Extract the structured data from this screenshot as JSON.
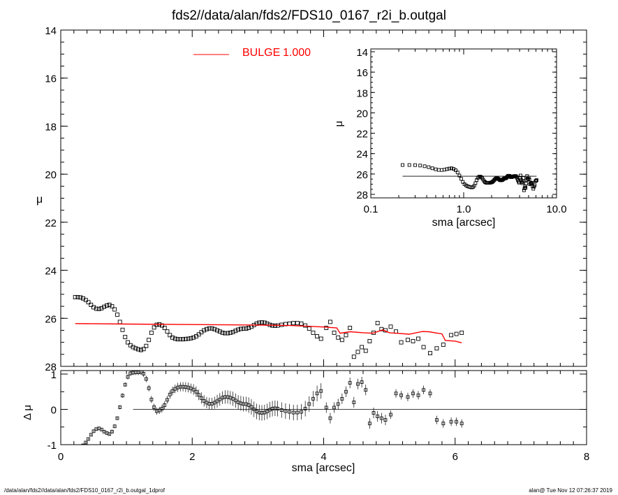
{
  "title": "fds2//data/alan/fds2/FDS10_0167_r2i_b.outgal",
  "footer_left": "/data/alan/fds2//data/alan/fds2/FDS10_0167_r2i_b.outgal_1dprof",
  "footer_right": "alan@  Tue Nov 12 07:26:37 2019",
  "colors": {
    "model": "#ff0000",
    "data": "#000000",
    "axis": "#000000",
    "grid": "#000000"
  },
  "chart_data": [
    {
      "id": "main",
      "type": "scatter",
      "xlabel": "",
      "ylabel": "μ",
      "xlim": [
        0,
        8
      ],
      "ylim": [
        28,
        14
      ],
      "y_inverted": true,
      "yticks": [
        14,
        16,
        18,
        20,
        22,
        24,
        26,
        28
      ],
      "ytick_labels": [
        "14",
        "16",
        "18",
        "20",
        "22",
        "24",
        "26",
        "28"
      ],
      "legend": {
        "label": "BULGE",
        "value": "1.000",
        "position": "top-left"
      },
      "series": [
        {
          "kind": "points",
          "x": [
            0.22,
            0.26,
            0.3,
            0.34,
            0.38,
            0.42,
            0.46,
            0.5,
            0.54,
            0.58,
            0.62,
            0.66,
            0.7,
            0.74,
            0.78,
            0.82,
            0.86,
            0.9,
            0.94,
            0.98,
            1.02,
            1.06,
            1.1,
            1.14,
            1.18,
            1.22,
            1.26,
            1.3,
            1.34,
            1.38,
            1.42,
            1.46,
            1.5,
            1.54,
            1.58,
            1.62,
            1.66,
            1.7,
            1.74,
            1.78,
            1.82,
            1.86,
            1.9,
            1.94,
            1.98,
            2.02,
            2.06,
            2.1,
            2.14,
            2.18,
            2.22,
            2.26,
            2.3,
            2.34,
            2.38,
            2.42,
            2.46,
            2.5,
            2.54,
            2.58,
            2.62,
            2.66,
            2.7,
            2.74,
            2.78,
            2.82,
            2.86,
            2.9,
            2.94,
            2.98,
            3.02,
            3.06,
            3.1,
            3.14,
            3.18,
            3.22,
            3.26,
            3.3,
            3.36,
            3.42,
            3.48,
            3.54,
            3.6,
            3.66,
            3.72,
            3.78,
            3.84,
            3.9,
            3.96,
            4.04,
            4.1,
            4.16,
            4.22,
            4.28,
            4.34,
            4.4,
            4.46,
            4.52,
            4.58,
            4.64,
            4.7,
            4.76,
            4.82,
            4.88,
            4.94,
            5.02,
            5.1,
            5.18,
            5.28,
            5.36,
            5.44,
            5.52,
            5.62,
            5.72,
            5.82,
            5.94,
            6.02,
            6.1
          ],
          "y": [
            25.12,
            25.12,
            25.13,
            25.17,
            25.24,
            25.33,
            25.44,
            25.54,
            25.6,
            25.61,
            25.58,
            25.52,
            25.47,
            25.44,
            25.5,
            25.63,
            25.85,
            26.15,
            26.48,
            26.78,
            27.0,
            27.12,
            27.2,
            27.25,
            27.29,
            27.32,
            27.28,
            27.15,
            26.9,
            26.6,
            26.38,
            26.27,
            26.25,
            26.3,
            26.4,
            26.55,
            26.7,
            26.8,
            26.85,
            26.87,
            26.87,
            26.87,
            26.86,
            26.85,
            26.83,
            26.8,
            26.75,
            26.67,
            26.58,
            26.5,
            26.45,
            26.42,
            26.42,
            26.45,
            26.5,
            26.55,
            26.6,
            26.62,
            26.62,
            26.6,
            26.57,
            26.52,
            26.47,
            26.44,
            26.43,
            26.43,
            26.4,
            26.35,
            26.28,
            26.22,
            26.18,
            26.17,
            26.18,
            26.22,
            26.27,
            26.3,
            26.31,
            26.3,
            26.27,
            26.24,
            26.22,
            26.2,
            26.2,
            26.22,
            26.3,
            26.43,
            26.6,
            26.75,
            26.85,
            26.4,
            26.15,
            26.6,
            26.8,
            26.9,
            26.7,
            26.4,
            27.6,
            27.4,
            27.2,
            27.35,
            26.95,
            26.6,
            26.2,
            26.45,
            26.5,
            26.35,
            26.55,
            27.0,
            26.9,
            26.95,
            26.85,
            27.2,
            27.45,
            27.25,
            27.1,
            26.7,
            26.65,
            26.6
          ]
        },
        {
          "kind": "line",
          "name": "BULGE",
          "x": [
            0.22,
            1.0,
            2.0,
            3.0,
            3.5,
            4.0,
            4.2,
            4.25,
            4.4,
            4.6,
            4.75,
            4.9,
            5.0,
            5.1,
            5.3,
            5.5,
            5.6,
            5.8,
            5.85,
            6.0,
            6.1
          ],
          "y": [
            26.22,
            26.24,
            26.26,
            26.28,
            26.3,
            26.36,
            26.4,
            26.62,
            26.56,
            26.6,
            26.62,
            26.48,
            26.6,
            26.62,
            26.66,
            26.55,
            26.56,
            26.65,
            26.92,
            26.95,
            27.02
          ]
        }
      ]
    },
    {
      "id": "residual",
      "type": "scatter",
      "xlabel": "sma [arcsec]",
      "ylabel": "Δ μ",
      "xlim": [
        0,
        8
      ],
      "ylim": [
        -1,
        1
      ],
      "xticks": [
        0,
        2,
        4,
        6,
        8
      ],
      "xtick_labels": [
        "0",
        "2",
        "4",
        "6",
        "8"
      ],
      "yticks": [
        -1,
        0,
        1
      ],
      "ytick_labels": [
        "-1",
        "0",
        "1"
      ],
      "zero_line_x": [
        1.1,
        8.0
      ],
      "series": [
        {
          "kind": "points_with_errors",
          "x": [
            0.22,
            0.26,
            0.3,
            0.34,
            0.38,
            0.42,
            0.46,
            0.5,
            0.54,
            0.58,
            0.62,
            0.66,
            0.7,
            0.74,
            0.78,
            0.82,
            0.86,
            0.9,
            0.94,
            0.98,
            1.02,
            1.06,
            1.1,
            1.14,
            1.18,
            1.22,
            1.26,
            1.3,
            1.34,
            1.38,
            1.42,
            1.46,
            1.5,
            1.54,
            1.58,
            1.62,
            1.66,
            1.7,
            1.74,
            1.78,
            1.82,
            1.86,
            1.9,
            1.94,
            1.98,
            2.02,
            2.06,
            2.1,
            2.14,
            2.18,
            2.22,
            2.26,
            2.3,
            2.34,
            2.38,
            2.42,
            2.46,
            2.5,
            2.54,
            2.58,
            2.62,
            2.66,
            2.7,
            2.74,
            2.78,
            2.82,
            2.86,
            2.9,
            2.94,
            2.98,
            3.02,
            3.06,
            3.1,
            3.14,
            3.18,
            3.22,
            3.26,
            3.3,
            3.36,
            3.42,
            3.48,
            3.54,
            3.6,
            3.66,
            3.72,
            3.78,
            3.84,
            3.9,
            3.96,
            4.04,
            4.1,
            4.16,
            4.22,
            4.28,
            4.34,
            4.4,
            4.46,
            4.52,
            4.58,
            4.64,
            4.7,
            4.76,
            4.82,
            4.88,
            4.94,
            5.02,
            5.1,
            5.18,
            5.28,
            5.36,
            5.44,
            5.52,
            5.62,
            5.72,
            5.82,
            5.94,
            6.02,
            6.1
          ],
          "y": [
            -1.1,
            -1.1,
            -1.08,
            -1.02,
            -0.94,
            -0.84,
            -0.72,
            -0.62,
            -0.56,
            -0.54,
            -0.57,
            -0.63,
            -0.67,
            -0.7,
            -0.63,
            -0.48,
            -0.25,
            0.06,
            0.39,
            0.7,
            0.92,
            1.02,
            1.04,
            1.05,
            1.05,
            1.06,
            1.01,
            0.86,
            0.6,
            0.28,
            0.06,
            -0.05,
            -0.03,
            0.02,
            0.12,
            0.27,
            0.42,
            0.52,
            0.58,
            0.62,
            0.64,
            0.64,
            0.63,
            0.62,
            0.59,
            0.56,
            0.5,
            0.41,
            0.32,
            0.24,
            0.19,
            0.16,
            0.16,
            0.19,
            0.23,
            0.28,
            0.33,
            0.35,
            0.35,
            0.33,
            0.3,
            0.25,
            0.2,
            0.17,
            0.15,
            0.15,
            0.12,
            0.07,
            0.0,
            -0.06,
            -0.09,
            -0.1,
            -0.09,
            -0.06,
            -0.01,
            0.02,
            0.03,
            0.02,
            -0.02,
            -0.05,
            -0.07,
            -0.09,
            -0.09,
            -0.07,
            0.02,
            0.15,
            0.3,
            0.45,
            0.52,
            0.05,
            -0.25,
            0.05,
            0.15,
            0.3,
            0.5,
            0.75,
            0.2,
            0.72,
            0.77,
            0.55,
            -0.4,
            -0.1,
            -0.2,
            -0.25,
            -0.3,
            -0.15,
            0.45,
            0.4,
            0.35,
            0.45,
            0.4,
            0.55,
            0.45,
            -0.3,
            -0.4,
            -0.35,
            -0.35,
            -0.4
          ],
          "err": [
            0.04,
            0.04,
            0.04,
            0.04,
            0.04,
            0.04,
            0.04,
            0.04,
            0.04,
            0.04,
            0.04,
            0.04,
            0.04,
            0.04,
            0.05,
            0.05,
            0.05,
            0.06,
            0.06,
            0.06,
            0.07,
            0.07,
            0.07,
            0.08,
            0.08,
            0.08,
            0.09,
            0.09,
            0.09,
            0.1,
            0.1,
            0.1,
            0.1,
            0.11,
            0.11,
            0.11,
            0.12,
            0.12,
            0.12,
            0.13,
            0.13,
            0.13,
            0.14,
            0.14,
            0.14,
            0.15,
            0.15,
            0.15,
            0.16,
            0.16,
            0.16,
            0.17,
            0.17,
            0.17,
            0.18,
            0.18,
            0.18,
            0.19,
            0.19,
            0.19,
            0.2,
            0.2,
            0.2,
            0.21,
            0.21,
            0.21,
            0.22,
            0.22,
            0.22,
            0.22,
            0.22,
            0.22,
            0.22,
            0.22,
            0.22,
            0.22,
            0.22,
            0.22,
            0.22,
            0.22,
            0.22,
            0.22,
            0.22,
            0.22,
            0.22,
            0.22,
            0.22,
            0.22,
            0.22,
            0.15,
            0.15,
            0.15,
            0.15,
            0.15,
            0.15,
            0.15,
            0.15,
            0.15,
            0.15,
            0.15,
            0.15,
            0.15,
            0.15,
            0.15,
            0.15,
            0.12,
            0.12,
            0.12,
            0.12,
            0.12,
            0.12,
            0.12,
            0.12,
            0.12,
            0.12,
            0.12,
            0.12,
            0.12
          ]
        }
      ]
    },
    {
      "id": "inset",
      "type": "scatter",
      "xlabel": "sma [arcsec]",
      "ylabel": "μ",
      "x_scale": "log",
      "xlim": [
        0.1,
        10.0
      ],
      "ylim": [
        28,
        14
      ],
      "y_inverted": true,
      "xticks": [
        0.1,
        1.0,
        10.0
      ],
      "xtick_labels": [
        "0.1",
        "1.0",
        "10.0"
      ],
      "yticks": [
        14,
        16,
        18,
        20,
        22,
        24,
        26,
        28
      ],
      "ytick_labels": [
        "14",
        "16",
        "18",
        "20",
        "22",
        "24",
        "26",
        "28"
      ],
      "series": [
        {
          "kind": "points",
          "x": [
            0.22,
            0.26,
            0.3,
            0.34,
            0.38,
            0.42,
            0.46,
            0.5,
            0.54,
            0.58,
            0.62,
            0.66,
            0.7,
            0.74,
            0.78,
            0.82,
            0.86,
            0.9,
            0.94,
            0.98,
            1.02,
            1.06,
            1.1,
            1.14,
            1.18,
            1.22,
            1.26,
            1.3,
            1.34,
            1.38,
            1.42,
            1.46,
            1.5,
            1.54,
            1.58,
            1.62,
            1.66,
            1.7,
            1.74,
            1.78,
            1.82,
            1.86,
            1.9,
            1.94,
            1.98,
            2.02,
            2.06,
            2.1,
            2.14,
            2.18,
            2.22,
            2.26,
            2.3,
            2.34,
            2.38,
            2.42,
            2.46,
            2.5,
            2.54,
            2.58,
            2.62,
            2.66,
            2.7,
            2.74,
            2.78,
            2.82,
            2.86,
            2.9,
            2.94,
            2.98,
            3.02,
            3.06,
            3.1,
            3.14,
            3.18,
            3.22,
            3.26,
            3.3,
            3.36,
            3.42,
            3.48,
            3.54,
            3.6,
            3.66,
            3.72,
            3.78,
            3.84,
            3.9,
            3.96,
            4.04,
            4.1,
            4.16,
            4.22,
            4.28,
            4.34,
            4.4,
            4.46,
            4.52,
            4.58,
            4.64,
            4.7,
            4.76,
            4.82,
            4.88,
            4.94,
            5.02,
            5.1,
            5.18,
            5.28,
            5.36,
            5.44,
            5.52,
            5.62,
            5.72,
            5.82,
            5.94,
            6.02,
            6.1
          ],
          "y": [
            25.12,
            25.12,
            25.13,
            25.17,
            25.24,
            25.33,
            25.44,
            25.54,
            25.6,
            25.61,
            25.58,
            25.52,
            25.47,
            25.44,
            25.5,
            25.63,
            25.85,
            26.15,
            26.48,
            26.78,
            27.0,
            27.12,
            27.2,
            27.25,
            27.29,
            27.32,
            27.28,
            27.15,
            26.9,
            26.6,
            26.38,
            26.27,
            26.25,
            26.3,
            26.4,
            26.55,
            26.7,
            26.8,
            26.85,
            26.87,
            26.87,
            26.87,
            26.86,
            26.85,
            26.83,
            26.8,
            26.75,
            26.67,
            26.58,
            26.5,
            26.45,
            26.42,
            26.42,
            26.45,
            26.5,
            26.55,
            26.6,
            26.62,
            26.62,
            26.6,
            26.57,
            26.52,
            26.47,
            26.44,
            26.43,
            26.43,
            26.4,
            26.35,
            26.28,
            26.22,
            26.18,
            26.17,
            26.18,
            26.22,
            26.27,
            26.3,
            26.31,
            26.3,
            26.27,
            26.24,
            26.22,
            26.2,
            26.2,
            26.22,
            26.3,
            26.43,
            26.6,
            26.75,
            26.85,
            26.4,
            26.15,
            26.6,
            26.8,
            26.9,
            26.7,
            26.4,
            27.6,
            27.4,
            27.2,
            27.35,
            26.95,
            26.6,
            26.2,
            26.45,
            26.5,
            26.35,
            26.55,
            27.0,
            26.9,
            26.95,
            26.85,
            27.2,
            27.45,
            27.25,
            27.1,
            26.7,
            26.65,
            26.6
          ]
        },
        {
          "kind": "line",
          "x": [
            0.22,
            6.1
          ],
          "y": [
            26.22,
            26.22
          ]
        }
      ]
    }
  ]
}
